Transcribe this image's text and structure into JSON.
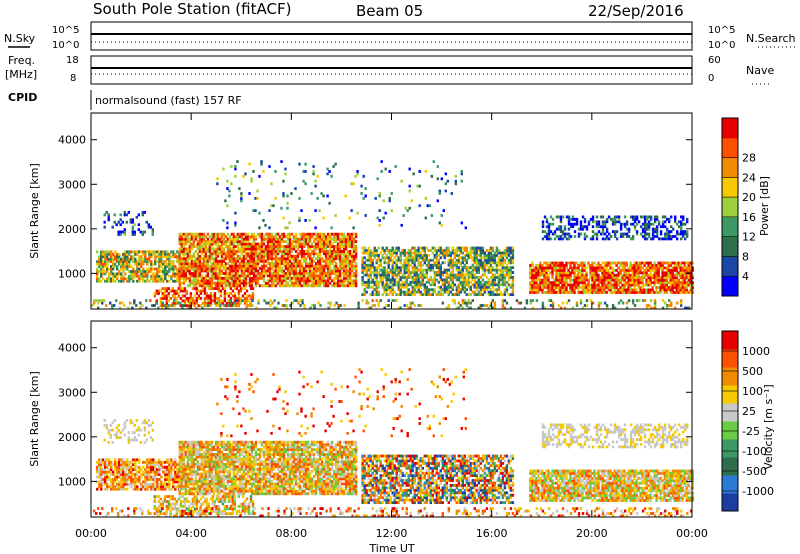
{
  "header": {
    "station": "South Pole Station (fitACF)",
    "beam": "Beam 05",
    "date": "22/Sep/2016"
  },
  "top_panels": {
    "nsky_label": "N.Sky",
    "nsky_ticks": [
      "10^5",
      "10^0"
    ],
    "nsearch_label": "N.Search",
    "nsearch_ticks": [
      "10^5",
      "10^0"
    ],
    "freq_label": "Freq.",
    "freq_unit": "[MHz]",
    "freq_ticks": [
      "18",
      "8"
    ],
    "nave_label": "Nave",
    "nave_ticks": [
      "60",
      "0"
    ],
    "cpid_label": "CPID",
    "cpid_text": "normalsound (fast) 157 RF"
  },
  "colors": {
    "power": [
      "#0000ff",
      "#1a46a6",
      "#2f6e4a",
      "#3c9966",
      "#9fcf3a",
      "#f5c800",
      "#f08a00",
      "#ff5000",
      "#e60000"
    ],
    "velocity": [
      "#1c3ea3",
      "#2a7ad6",
      "#2f6e4a",
      "#3c9966",
      "#6acc44",
      "#c8c8c8",
      "#f5c800",
      "#f08a00",
      "#ff5000",
      "#e60000"
    ]
  },
  "chart_data": [
    {
      "type": "heatmap",
      "name": "power",
      "xlabel": "",
      "ylabel": "Slant Range [km]",
      "x_tick_labels": [
        "00:00",
        "04:00",
        "08:00",
        "12:00",
        "16:00",
        "20:00",
        "00:00"
      ],
      "y_ticks": [
        1000,
        2000,
        3000,
        4000
      ],
      "ylim": [
        200,
        4600
      ],
      "xlim_hours": [
        0,
        24
      ],
      "colorbar_label": "Power [dB]",
      "colorbar_ticks": [
        "4",
        "8",
        "12",
        "16",
        "20",
        "24",
        "28"
      ]
    },
    {
      "type": "heatmap",
      "name": "velocity",
      "xlabel": "Time UT",
      "ylabel": "Slant Range [km]",
      "x_tick_labels": [
        "00:00",
        "04:00",
        "08:00",
        "12:00",
        "16:00",
        "20:00",
        "00:00"
      ],
      "y_ticks": [
        1000,
        2000,
        3000,
        4000
      ],
      "ylim": [
        200,
        4600
      ],
      "xlim_hours": [
        0,
        24
      ],
      "colorbar_label": "Velocity [m s⁻¹]",
      "colorbar_ticks": [
        "1000",
        "500",
        "100",
        "25",
        "-25",
        "-100",
        "-500",
        "-1000"
      ]
    }
  ]
}
